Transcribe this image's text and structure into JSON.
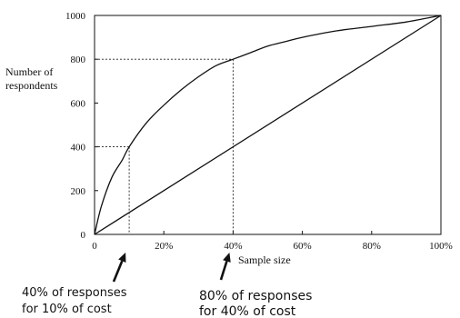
{
  "chart_data": {
    "type": "line",
    "x_unit": "%",
    "xlim": [
      0,
      100
    ],
    "ylim": [
      0,
      1000
    ],
    "x_ticks": [
      0,
      20,
      40,
      60,
      80,
      100
    ],
    "x_tick_labels": [
      "0",
      "20%",
      "40%",
      "60%",
      "80%",
      "100%"
    ],
    "y_ticks": [
      0,
      200,
      400,
      600,
      800,
      1000
    ],
    "y_tick_labels": [
      "0",
      "200",
      "400",
      "600",
      "800",
      "1000"
    ],
    "xlabel": "Sample size",
    "ylabel_lines": [
      "Number of",
      "respondents"
    ],
    "grid": false,
    "series": [
      {
        "style": "curve",
        "x": [
          0,
          2,
          5,
          8,
          10,
          15,
          20,
          25,
          30,
          35,
          40,
          45,
          50,
          55,
          60,
          70,
          80,
          90,
          100
        ],
        "y": [
          0,
          130,
          260,
          340,
          400,
          510,
          590,
          660,
          720,
          770,
          800,
          830,
          860,
          880,
          900,
          930,
          950,
          970,
          1000
        ]
      },
      {
        "style": "straight",
        "x": [
          0,
          100
        ],
        "y": [
          0,
          1000
        ]
      }
    ],
    "reference_lines": [
      {
        "x": 10,
        "y": 400
      },
      {
        "x": 40,
        "y": 800
      }
    ],
    "annotations": [
      {
        "lines": [
          "40% of responses",
          "for 10% of cost"
        ],
        "x": 10
      },
      {
        "lines": [
          "80% of responses",
          "for 40% of cost"
        ],
        "x": 40
      }
    ]
  }
}
